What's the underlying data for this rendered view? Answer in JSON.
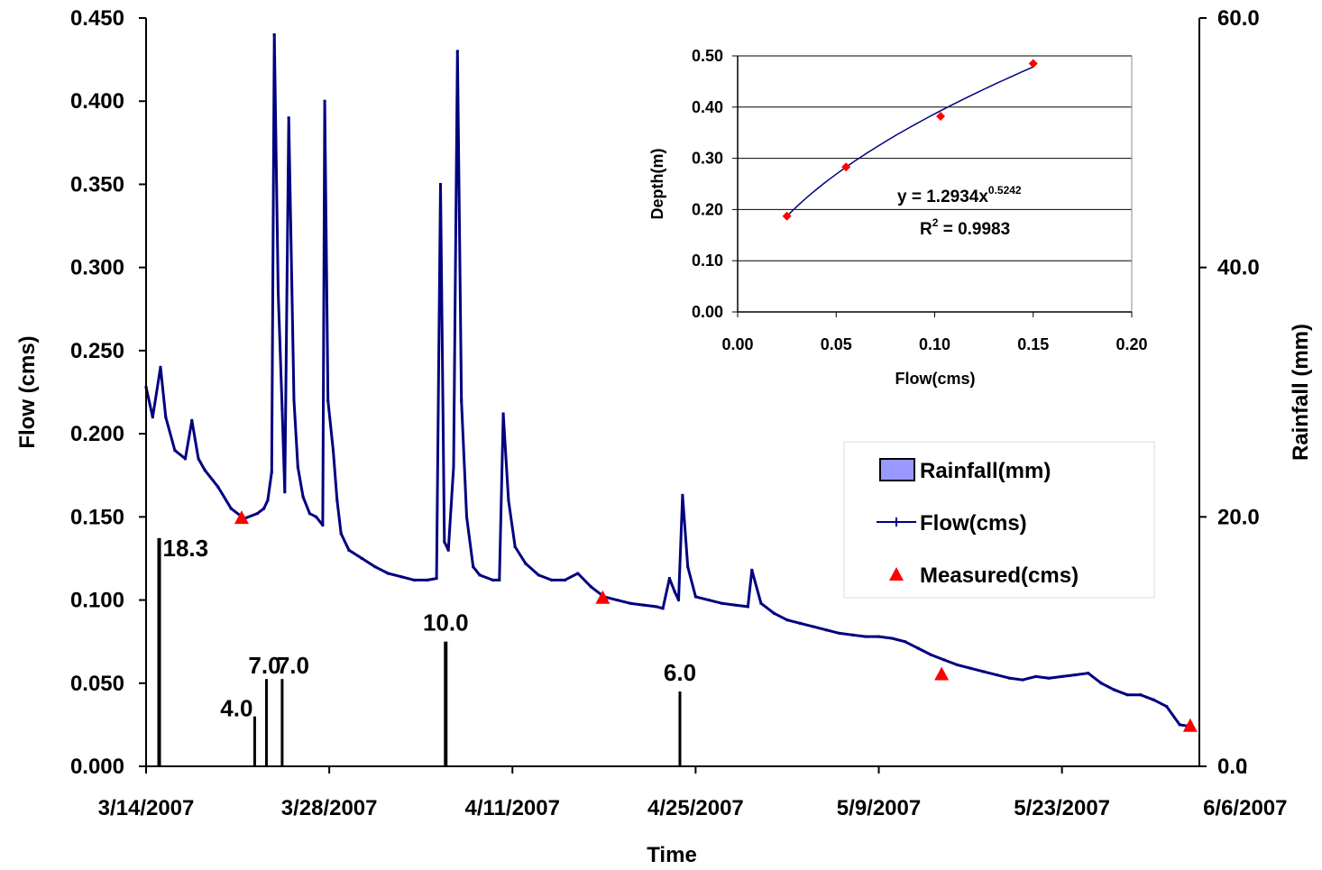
{
  "chart_data": {
    "type": "line",
    "xlabel": "Time",
    "ylabel": "Flow (cms)",
    "y2label": "Rainfall (mm)",
    "x_ticks": [
      "3/14/2007",
      "3/28/2007",
      "4/11/2007",
      "4/25/2007",
      "5/9/2007",
      "5/23/2007",
      "6/6/2007"
    ],
    "ylim": [
      0,
      0.45
    ],
    "y_ticks": [
      "0.000",
      "0.050",
      "0.100",
      "0.150",
      "0.200",
      "0.250",
      "0.300",
      "0.350",
      "0.400",
      "0.450"
    ],
    "y2lim": [
      0,
      60
    ],
    "y2_ticks": [
      "0.0",
      "20.0",
      "40.0",
      "60.0"
    ],
    "grid": false,
    "legend_position": "center-right",
    "series": [
      {
        "name": "Rainfall(mm)",
        "type": "bar",
        "color": "#9999ff",
        "points": [
          {
            "day": 1,
            "value": 18.3,
            "label": "18.3"
          },
          {
            "day": 8.3,
            "value": 4.0,
            "label": "4.0"
          },
          {
            "day": 9.2,
            "value": 7.0,
            "label": "7.0"
          },
          {
            "day": 10.4,
            "value": 7.0,
            "label": "7.0"
          },
          {
            "day": 22.9,
            "value": 10.0,
            "label": "10.0"
          },
          {
            "day": 40.8,
            "value": 6.0,
            "label": "6.0"
          }
        ]
      },
      {
        "name": "Flow(cms)",
        "type": "line",
        "color": "#000080",
        "points": [
          [
            0,
            0.228
          ],
          [
            0.5,
            0.21
          ],
          [
            1.1,
            0.24
          ],
          [
            1.5,
            0.21
          ],
          [
            2.2,
            0.19
          ],
          [
            3.0,
            0.185
          ],
          [
            3.5,
            0.208
          ],
          [
            4.0,
            0.185
          ],
          [
            4.5,
            0.178
          ],
          [
            5.5,
            0.168
          ],
          [
            6.5,
            0.155
          ],
          [
            7.5,
            0.149
          ],
          [
            8.5,
            0.152
          ],
          [
            9.0,
            0.155
          ],
          [
            9.3,
            0.16
          ],
          [
            9.6,
            0.177
          ],
          [
            9.8,
            0.44
          ],
          [
            10.1,
            0.285
          ],
          [
            10.4,
            0.215
          ],
          [
            10.6,
            0.165
          ],
          [
            10.9,
            0.39
          ],
          [
            11.3,
            0.22
          ],
          [
            11.6,
            0.18
          ],
          [
            12.0,
            0.162
          ],
          [
            12.5,
            0.152
          ],
          [
            13.0,
            0.15
          ],
          [
            13.5,
            0.145
          ],
          [
            13.65,
            0.4
          ],
          [
            13.9,
            0.22
          ],
          [
            14.3,
            0.19
          ],
          [
            14.6,
            0.16
          ],
          [
            14.9,
            0.14
          ],
          [
            15.5,
            0.13
          ],
          [
            16.5,
            0.125
          ],
          [
            17.5,
            0.12
          ],
          [
            18.5,
            0.116
          ],
          [
            19.5,
            0.114
          ],
          [
            20.5,
            0.112
          ],
          [
            21.5,
            0.112
          ],
          [
            22.2,
            0.113
          ],
          [
            22.5,
            0.35
          ],
          [
            22.8,
            0.135
          ],
          [
            23.1,
            0.13
          ],
          [
            23.5,
            0.18
          ],
          [
            23.8,
            0.43
          ],
          [
            24.1,
            0.22
          ],
          [
            24.5,
            0.15
          ],
          [
            25.0,
            0.12
          ],
          [
            25.5,
            0.115
          ],
          [
            26.5,
            0.112
          ],
          [
            27.0,
            0.112
          ],
          [
            27.3,
            0.212
          ],
          [
            27.7,
            0.16
          ],
          [
            28.2,
            0.132
          ],
          [
            29,
            0.122
          ],
          [
            30,
            0.115
          ],
          [
            31,
            0.112
          ],
          [
            32,
            0.112
          ],
          [
            33,
            0.116
          ],
          [
            34,
            0.108
          ],
          [
            35,
            0.102
          ],
          [
            36,
            0.1
          ],
          [
            37,
            0.098
          ],
          [
            38,
            0.097
          ],
          [
            39,
            0.096
          ],
          [
            39.5,
            0.095
          ],
          [
            40.0,
            0.113
          ],
          [
            40.4,
            0.105
          ],
          [
            40.7,
            0.1
          ],
          [
            41.0,
            0.163
          ],
          [
            41.4,
            0.12
          ],
          [
            42,
            0.102
          ],
          [
            43,
            0.1
          ],
          [
            44,
            0.098
          ],
          [
            45,
            0.097
          ],
          [
            46,
            0.096
          ],
          [
            46.3,
            0.118
          ],
          [
            47,
            0.098
          ],
          [
            48,
            0.092
          ],
          [
            49,
            0.088
          ],
          [
            50,
            0.086
          ],
          [
            51,
            0.084
          ],
          [
            52,
            0.082
          ],
          [
            53,
            0.08
          ],
          [
            54,
            0.079
          ],
          [
            55,
            0.078
          ],
          [
            56,
            0.078
          ],
          [
            57,
            0.077
          ],
          [
            58,
            0.075
          ],
          [
            59,
            0.071
          ],
          [
            60,
            0.067
          ],
          [
            61,
            0.064
          ],
          [
            62,
            0.061
          ],
          [
            63,
            0.059
          ],
          [
            64,
            0.057
          ],
          [
            65,
            0.055
          ],
          [
            66,
            0.053
          ],
          [
            67,
            0.052
          ],
          [
            68,
            0.054
          ],
          [
            69,
            0.053
          ],
          [
            70,
            0.054
          ],
          [
            71,
            0.055
          ],
          [
            72,
            0.056
          ],
          [
            73,
            0.05
          ],
          [
            74,
            0.046
          ],
          [
            75,
            0.043
          ],
          [
            76,
            0.043
          ],
          [
            77,
            0.04
          ],
          [
            78,
            0.036
          ],
          [
            79,
            0.025
          ],
          [
            79.8,
            0.024
          ]
        ]
      },
      {
        "name": "Measured(cms)",
        "type": "scatter",
        "color": "#ff0000",
        "points": [
          [
            7.3,
            0.149
          ],
          [
            34.9,
            0.101
          ],
          [
            60.8,
            0.055
          ],
          [
            79.8,
            0.024
          ]
        ]
      }
    ],
    "inset": {
      "type": "scatter",
      "xlabel": "Flow(cms)",
      "ylabel": "Depth(m)",
      "xlim": [
        0,
        0.2
      ],
      "ylim": [
        0,
        0.5
      ],
      "x_ticks": [
        "0.00",
        "0.05",
        "0.10",
        "0.15",
        "0.20"
      ],
      "y_ticks": [
        "0.00",
        "0.10",
        "0.20",
        "0.30",
        "0.40",
        "0.50"
      ],
      "points": [
        [
          0.025,
          0.187
        ],
        [
          0.055,
          0.283
        ],
        [
          0.103,
          0.382
        ],
        [
          0.15,
          0.485
        ]
      ],
      "marker_color": "#ff0000",
      "fit_color": "#000080",
      "fit": {
        "a": 1.2934,
        "b": 0.5242
      },
      "equation_base": "y = 1.2934x",
      "equation_exp": "0.5242",
      "r2_base": "R",
      "r2_exp": "2",
      "r2_value": " = 0.9983"
    }
  }
}
